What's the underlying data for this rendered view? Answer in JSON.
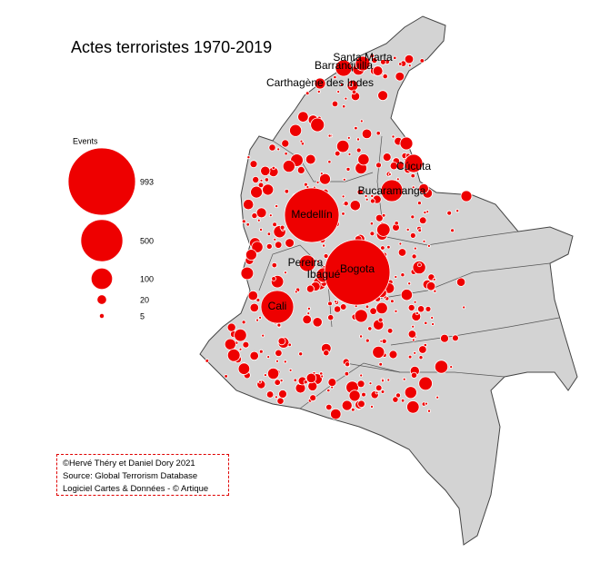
{
  "title": "Actes terroristes 1970-2019",
  "legend": {
    "title": "Events",
    "items": [
      993,
      500,
      100,
      20,
      5
    ]
  },
  "cities": [
    {
      "label": "Santa Marta"
    },
    {
      "label": "Barranquilla"
    },
    {
      "label": "Carthagène des Indes"
    },
    {
      "label": "Cúcuta"
    },
    {
      "label": "Bucaramanga"
    },
    {
      "label": "Medellín"
    },
    {
      "label": "Pereira"
    },
    {
      "label": "Ibagué"
    },
    {
      "label": "Bogota"
    },
    {
      "label": "Cali"
    }
  ],
  "credits": [
    "©Hervé Théry et Daniel Dory 2021",
    "Source: Global Terrorism Database",
    "Logiciel Cartes & Données - © Artique"
  ]
}
